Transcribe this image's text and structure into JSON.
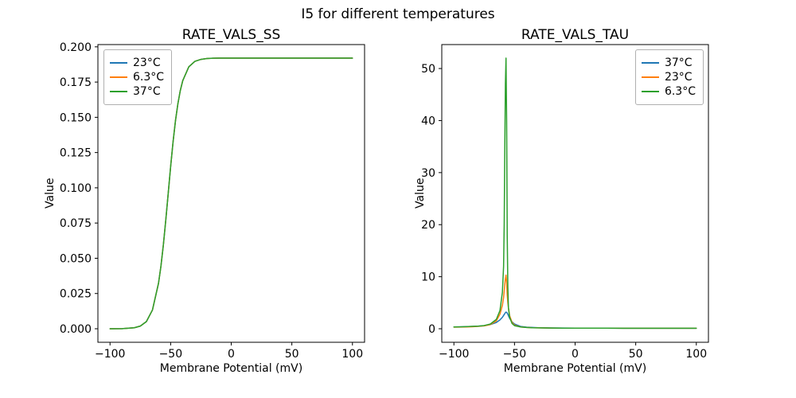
{
  "suptitle": "I5 for different temperatures",
  "chart_data": [
    {
      "id": "ss",
      "type": "line",
      "title": "RATE_VALS_SS",
      "xlabel": "Membrane Potential (mV)",
      "ylabel": "Value",
      "xlim": [
        -110,
        110
      ],
      "ylim": [
        -0.0096,
        0.2016
      ],
      "xticks": [
        -100,
        -50,
        0,
        50,
        100
      ],
      "xtick_labels": [
        "−100",
        "−50",
        "0",
        "50",
        "100"
      ],
      "yticks": [
        0,
        0.025,
        0.05,
        0.075,
        0.1,
        0.125,
        0.15,
        0.175,
        0.2
      ],
      "ytick_labels": [
        "0.000",
        "0.025",
        "0.050",
        "0.075",
        "0.100",
        "0.125",
        "0.150",
        "0.175",
        "0.200"
      ],
      "legend_loc": "upper-left",
      "grid": false,
      "x": [
        -100,
        -90,
        -80,
        -75,
        -70,
        -65,
        -60,
        -58,
        -56,
        -54,
        -52,
        -50,
        -48,
        -46,
        -44,
        -42,
        -40,
        -35,
        -30,
        -25,
        -20,
        -15,
        -10,
        0,
        25,
        50,
        100
      ],
      "series": [
        {
          "name": "23°C",
          "color": "#1f77b4",
          "y": [
            0.0,
            0.0001,
            0.0007,
            0.0019,
            0.0051,
            0.0133,
            0.0323,
            0.0444,
            0.0595,
            0.0771,
            0.096,
            0.115,
            0.1325,
            0.1476,
            0.1597,
            0.1691,
            0.176,
            0.1858,
            0.1897,
            0.1911,
            0.1917,
            0.1919,
            0.192,
            0.192,
            0.192,
            0.192,
            0.192
          ]
        },
        {
          "name": "6.3°C",
          "color": "#ff7f0e",
          "y": [
            0.0,
            0.0001,
            0.0007,
            0.0019,
            0.0051,
            0.0133,
            0.0323,
            0.0444,
            0.0595,
            0.0771,
            0.096,
            0.115,
            0.1325,
            0.1476,
            0.1597,
            0.1691,
            0.176,
            0.1858,
            0.1897,
            0.1911,
            0.1917,
            0.1919,
            0.192,
            0.192,
            0.192,
            0.192,
            0.192
          ]
        },
        {
          "name": "37°C",
          "color": "#2ca02c",
          "y": [
            0.0,
            0.0001,
            0.0007,
            0.0019,
            0.0051,
            0.0133,
            0.0323,
            0.0444,
            0.0595,
            0.0771,
            0.096,
            0.115,
            0.1325,
            0.1476,
            0.1597,
            0.1691,
            0.176,
            0.1858,
            0.1897,
            0.1911,
            0.1917,
            0.1919,
            0.192,
            0.192,
            0.192,
            0.192,
            0.192
          ]
        }
      ]
    },
    {
      "id": "tau",
      "type": "line",
      "title": "RATE_VALS_TAU",
      "xlabel": "Membrane Potential (mV)",
      "ylabel": "Value",
      "xlim": [
        -110,
        110
      ],
      "ylim": [
        -2.6,
        54.6
      ],
      "xticks": [
        -100,
        -50,
        0,
        50,
        100
      ],
      "xtick_labels": [
        "−100",
        "−50",
        "0",
        "50",
        "100"
      ],
      "yticks": [
        0,
        10,
        20,
        30,
        40,
        50
      ],
      "ytick_labels": [
        "0",
        "10",
        "20",
        "30",
        "40",
        "50"
      ],
      "legend_loc": "upper-right",
      "grid": false,
      "x": [
        -100,
        -95,
        -90,
        -85,
        -80,
        -75,
        -70,
        -65,
        -62,
        -60,
        -59,
        -58.5,
        -58,
        -57.5,
        -57,
        -56.5,
        -56,
        -55.5,
        -55,
        -54,
        -52,
        -50,
        -45,
        -40,
        -35,
        -30,
        -20,
        -10,
        0,
        20,
        40,
        60,
        80,
        100
      ],
      "series": [
        {
          "name": "37°C",
          "color": "#1f77b4",
          "y": [
            0.35,
            0.37,
            0.4,
            0.44,
            0.5,
            0.6,
            0.8,
            1.2,
            1.7,
            2.2,
            2.55,
            2.75,
            2.9,
            3.1,
            3.2,
            3.15,
            3.0,
            2.8,
            2.5,
            2.0,
            1.3,
            0.9,
            0.45,
            0.3,
            0.24,
            0.2,
            0.15,
            0.13,
            0.12,
            0.11,
            0.1,
            0.1,
            0.1,
            0.1
          ]
        },
        {
          "name": "23°C",
          "color": "#ff7f0e",
          "y": [
            0.3,
            0.32,
            0.35,
            0.38,
            0.45,
            0.55,
            0.8,
            1.5,
            2.8,
            4.5,
            6.0,
            7.2,
            8.5,
            9.6,
            10.3,
            9.0,
            6.5,
            5.0,
            4.0,
            2.5,
            1.2,
            0.7,
            0.35,
            0.25,
            0.2,
            0.18,
            0.14,
            0.12,
            0.12,
            0.11,
            0.1,
            0.1,
            0.1,
            0.1
          ]
        },
        {
          "name": "6.3°C",
          "color": "#2ca02c",
          "y": [
            0.35,
            0.37,
            0.4,
            0.45,
            0.5,
            0.62,
            0.9,
            1.8,
            3.5,
            7.0,
            12.0,
            20.0,
            35.0,
            47.0,
            52.0,
            40.0,
            18.0,
            8.0,
            4.0,
            2.2,
            1.0,
            0.6,
            0.35,
            0.25,
            0.2,
            0.18,
            0.14,
            0.12,
            0.12,
            0.11,
            0.1,
            0.1,
            0.1,
            0.1
          ]
        }
      ]
    }
  ]
}
